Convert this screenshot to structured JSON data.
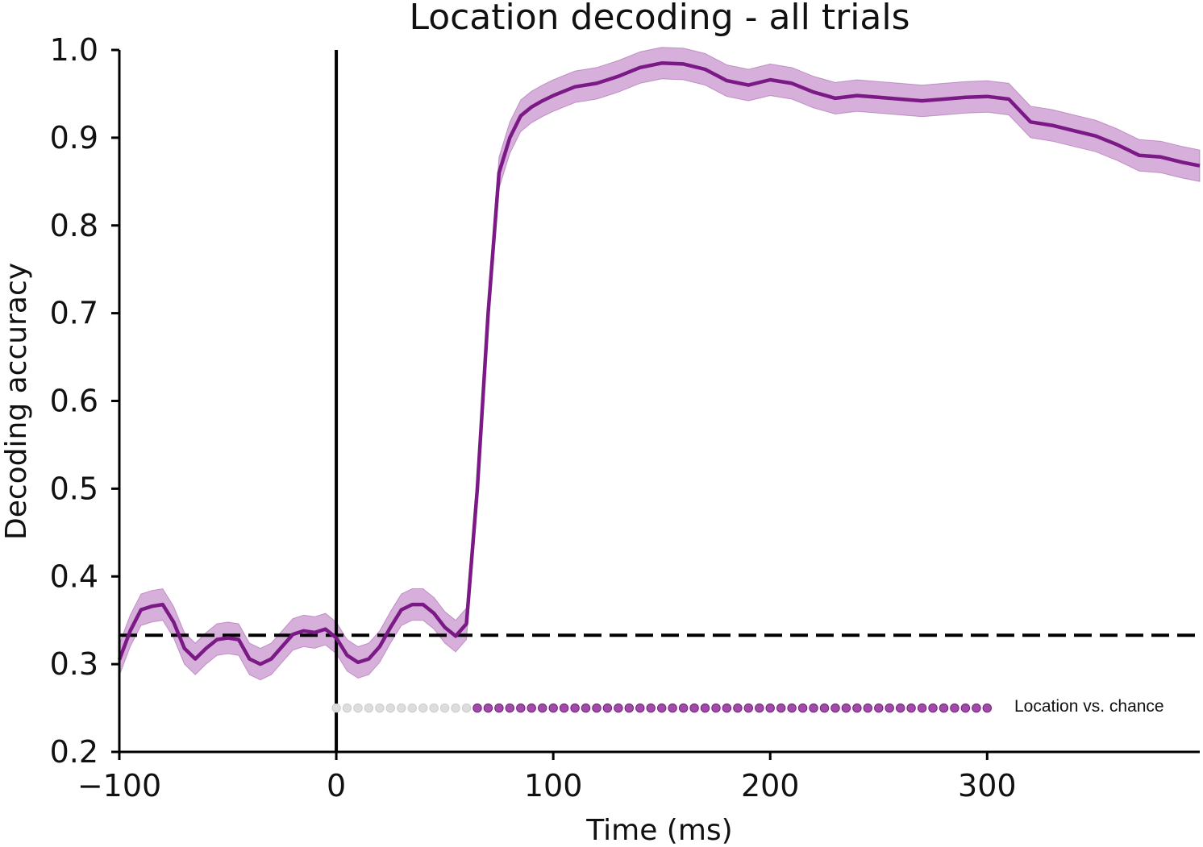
{
  "chart_data": {
    "type": "line",
    "title": "Location decoding - all trials",
    "xlabel": "Time (ms)",
    "ylabel": "Decoding accuracy",
    "xlim": [
      -100,
      398
    ],
    "ylim": [
      0.2,
      1.0
    ],
    "xticks": [
      -100,
      0,
      100,
      200,
      300
    ],
    "xtick_labels": [
      "−100",
      "0",
      "100",
      "200",
      "300"
    ],
    "yticks": [
      0.2,
      0.3,
      0.4,
      0.5,
      0.6,
      0.7,
      0.8,
      0.9,
      1.0
    ],
    "ytick_labels": [
      "0.2",
      "0.3",
      "0.4",
      "0.5",
      "0.6",
      "0.7",
      "0.8",
      "0.9",
      "1.0"
    ],
    "grid": false,
    "colors": {
      "line": "#7b1a86",
      "band": "#c58ecb",
      "sig_dot": "#8e2b98",
      "nonsig_dot": "#dddddd",
      "axis": "#000000"
    },
    "chance_level": 0.333,
    "stimulus_onset_ms": 0,
    "series": [
      {
        "style": "line-with-error-band",
        "x": [
          -100,
          -95,
          -90,
          -85,
          -80,
          -75,
          -70,
          -65,
          -60,
          -55,
          -50,
          -45,
          -40,
          -35,
          -30,
          -25,
          -20,
          -15,
          -10,
          -5,
          0,
          5,
          10,
          15,
          20,
          25,
          30,
          35,
          40,
          45,
          50,
          55,
          60,
          65,
          70,
          75,
          80,
          85,
          90,
          95,
          100,
          110,
          120,
          130,
          140,
          150,
          160,
          170,
          180,
          190,
          200,
          210,
          220,
          230,
          240,
          250,
          260,
          270,
          280,
          290,
          300,
          310,
          320,
          330,
          340,
          350,
          360,
          370,
          380,
          390,
          398
        ],
        "y": [
          0.305,
          0.338,
          0.362,
          0.366,
          0.368,
          0.348,
          0.318,
          0.306,
          0.318,
          0.328,
          0.33,
          0.328,
          0.306,
          0.3,
          0.306,
          0.32,
          0.334,
          0.338,
          0.336,
          0.34,
          0.33,
          0.31,
          0.302,
          0.306,
          0.32,
          0.342,
          0.362,
          0.368,
          0.368,
          0.358,
          0.342,
          0.332,
          0.346,
          0.5,
          0.7,
          0.86,
          0.9,
          0.925,
          0.935,
          0.942,
          0.948,
          0.958,
          0.962,
          0.97,
          0.98,
          0.985,
          0.984,
          0.978,
          0.965,
          0.96,
          0.966,
          0.962,
          0.952,
          0.945,
          0.948,
          0.946,
          0.944,
          0.942,
          0.944,
          0.946,
          0.947,
          0.944,
          0.918,
          0.914,
          0.908,
          0.902,
          0.892,
          0.88,
          0.878,
          0.872,
          0.868
        ],
        "error": 0.018
      }
    ],
    "significance": {
      "label": "Location vs. chance",
      "level": 0.25,
      "start_ms": 0,
      "end_ms": 300,
      "step_ms": 5,
      "significant_from_ms": 63
    }
  }
}
